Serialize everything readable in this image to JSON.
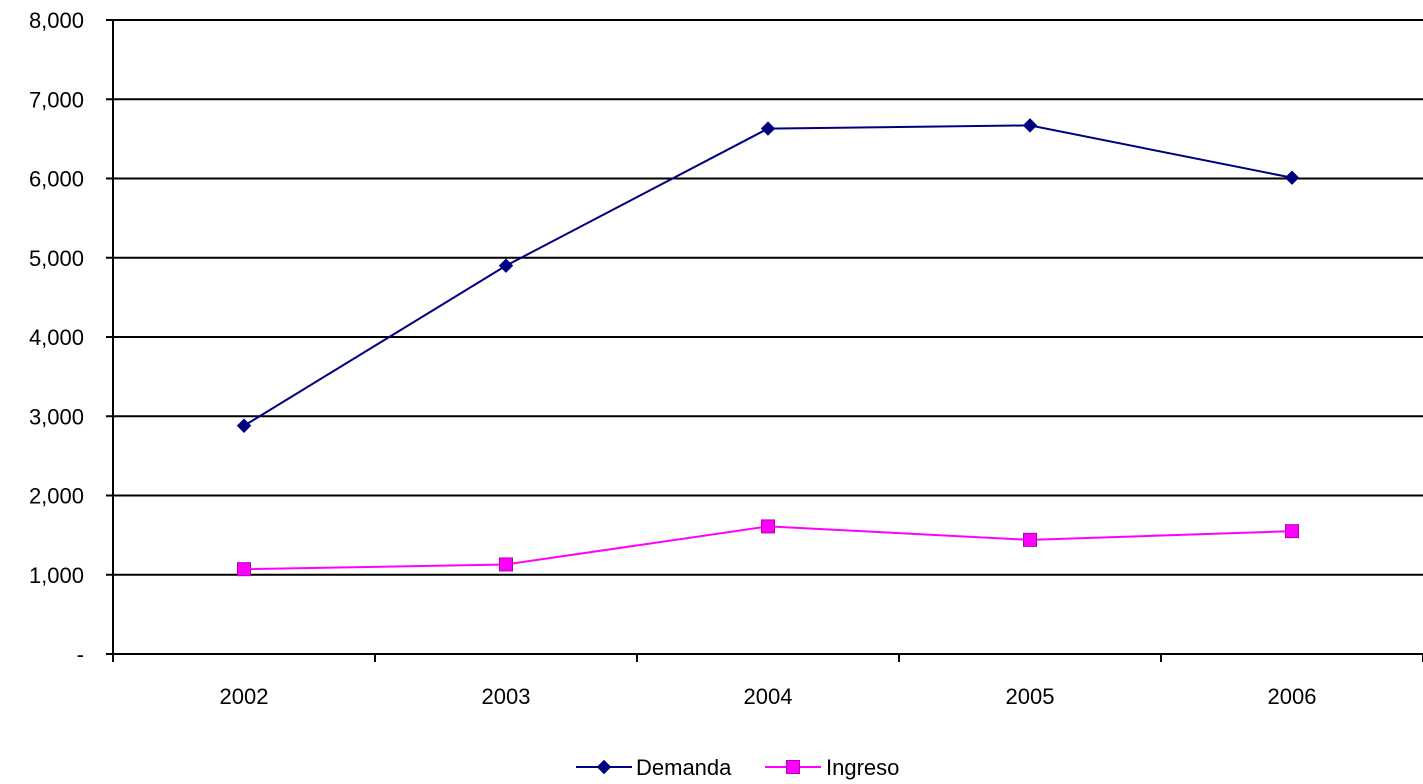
{
  "chart_data": {
    "type": "line",
    "x": [
      "2002",
      "2003",
      "2004",
      "2005",
      "2006"
    ],
    "ylim": [
      0,
      8000
    ],
    "yticks": [
      0,
      1000,
      2000,
      3000,
      4000,
      5000,
      6000,
      7000,
      8000
    ],
    "ytick_labels": [
      "-",
      "1,000",
      "2,000",
      "3,000",
      "4,000",
      "5,000",
      "6,000",
      "7,000",
      "8,000"
    ],
    "grid": true,
    "legend_position": "bottom-center",
    "series": [
      {
        "name": "Demanda",
        "values": [
          2880,
          4900,
          6630,
          6670,
          6010
        ],
        "color": "#000080",
        "marker": "diamond"
      },
      {
        "name": "Ingreso",
        "values": [
          1070,
          1130,
          1610,
          1440,
          1550
        ],
        "color": "#ff00ff",
        "marker": "square"
      }
    ]
  }
}
